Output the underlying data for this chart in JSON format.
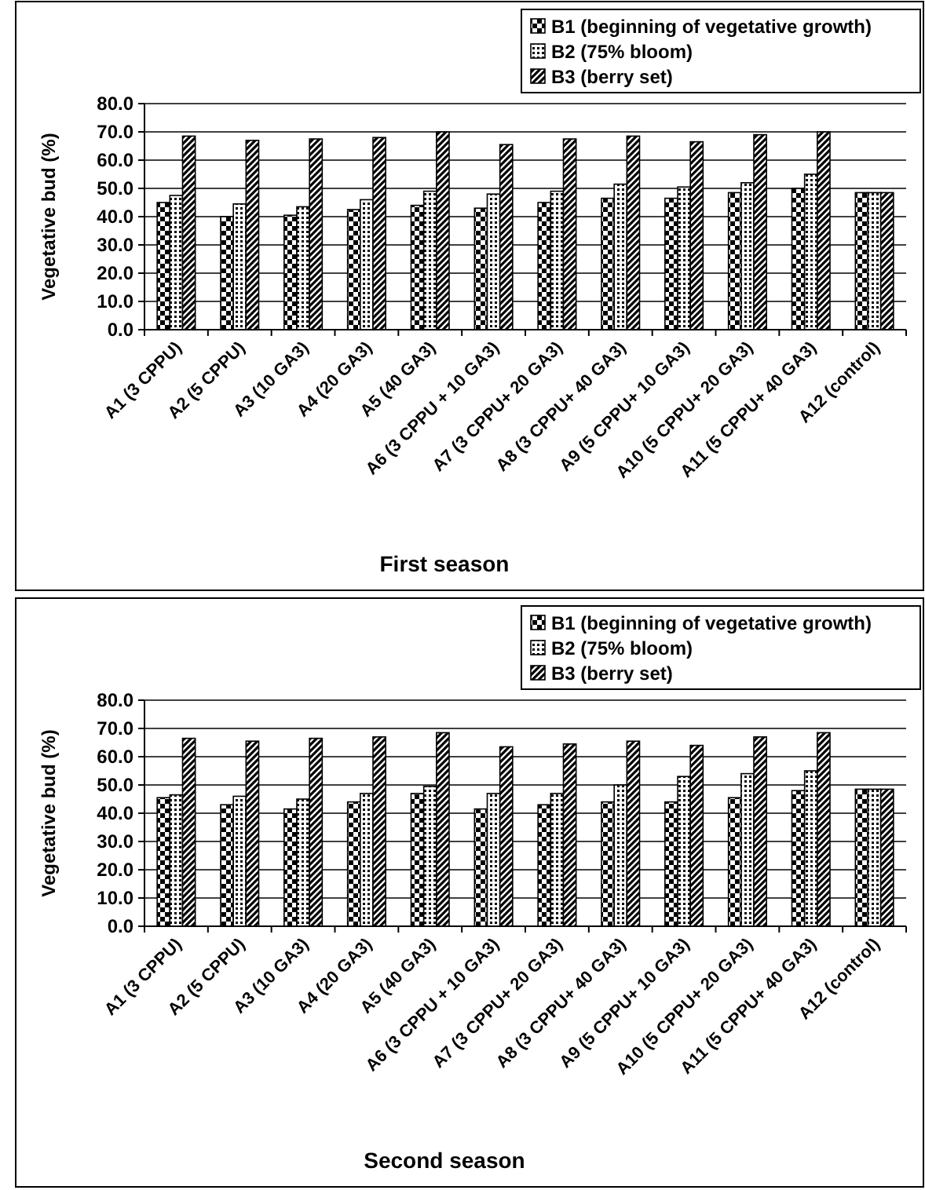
{
  "chart_data": [
    {
      "type": "bar",
      "title": "First season",
      "ylabel": "Vegetative bud (%)",
      "categories": [
        "A1 (3 CPPU)",
        "A2 (5 CPPU)",
        "A3 (10 GA3)",
        "A4 (20 GA3)",
        "A5 (40 GA3)",
        "A6 (3 CPPU + 10 GA3)",
        "A7 (3 CPPU+ 20 GA3)",
        "A8 (3 CPPU+ 40 GA3)",
        "A9 (5 CPPU+ 10 GA3)",
        "A10 (5 CPPU+ 20 GA3)",
        "A11 (5 CPPU+ 40 GA3)",
        "A12 (control)"
      ],
      "series": [
        {
          "name": "B1 (beginning of vegetative growth)",
          "color": "#000000",
          "values": [
            45,
            40,
            40.5,
            42.5,
            44,
            43,
            45,
            46.5,
            46.5,
            48.5,
            50,
            48.5
          ]
        },
        {
          "name": "B2 (75% bloom)",
          "color": "#000000",
          "values": [
            47.5,
            44.5,
            43.5,
            46,
            49,
            48,
            49,
            51.5,
            50.5,
            52,
            55,
            48.5
          ]
        },
        {
          "name": "B3 (berry set)",
          "color": "#000000",
          "values": [
            68.5,
            67,
            67.5,
            68,
            70,
            65.5,
            67.5,
            68.5,
            66.5,
            69,
            70,
            48.5
          ]
        }
      ],
      "ylim": [
        0,
        80
      ],
      "yticks": [
        {
          "value": 0,
          "label": "0.0"
        },
        {
          "value": 10,
          "label": "10.0"
        },
        {
          "value": 20,
          "label": "20.0"
        },
        {
          "value": 30,
          "label": "30.0"
        },
        {
          "value": 40,
          "label": "40.0"
        },
        {
          "value": 50,
          "label": "50.0"
        },
        {
          "value": 60,
          "label": "60.0"
        },
        {
          "value": 70,
          "label": "70.0"
        },
        {
          "value": 80,
          "label": "80.0"
        }
      ],
      "grid": "y",
      "legend": "top right"
    },
    {
      "type": "bar",
      "title": "Second season",
      "ylabel": "Vegetative bud (%)",
      "categories": [
        "A1 (3 CPPU)",
        "A2 (5 CPPU)",
        "A3 (10 GA3)",
        "A4 (20 GA3)",
        "A5 (40 GA3)",
        "A6 (3 CPPU + 10 GA3)",
        "A7 (3 CPPU+ 20 GA3)",
        "A8 (3 CPPU+ 40 GA3)",
        "A9 (5 CPPU+ 10 GA3)",
        "A10 (5 CPPU+ 20 GA3)",
        "A11 (5 CPPU+ 40 GA3)",
        "A12 (control)"
      ],
      "series": [
        {
          "name": "B1 (beginning of vegetative growth)",
          "color": "#000000",
          "values": [
            45.5,
            43,
            41.5,
            44,
            47,
            41.5,
            43,
            44,
            44,
            45.5,
            48,
            48.5
          ]
        },
        {
          "name": "B2 (75% bloom)",
          "color": "#000000",
          "values": [
            46.5,
            46,
            45,
            47,
            49.5,
            47,
            47,
            50,
            53,
            54,
            55,
            48.5
          ]
        },
        {
          "name": "B3 (berry set)",
          "color": "#000000",
          "values": [
            66.5,
            65.5,
            66.5,
            67,
            68.5,
            63.5,
            64.5,
            65.5,
            64,
            67,
            68.5,
            48.5
          ]
        }
      ],
      "ylim": [
        0,
        80
      ],
      "yticks": [
        {
          "value": 0,
          "label": "0.0"
        },
        {
          "value": 10,
          "label": "10.0"
        },
        {
          "value": 20,
          "label": "20.0"
        },
        {
          "value": 30,
          "label": "30.0"
        },
        {
          "value": 40,
          "label": "40.0"
        },
        {
          "value": 50,
          "label": "50.0"
        },
        {
          "value": 60,
          "label": "60.0"
        },
        {
          "value": 70,
          "label": "70.0"
        },
        {
          "value": 80,
          "label": "80.0"
        }
      ],
      "grid": "y",
      "legend": "top right"
    }
  ]
}
